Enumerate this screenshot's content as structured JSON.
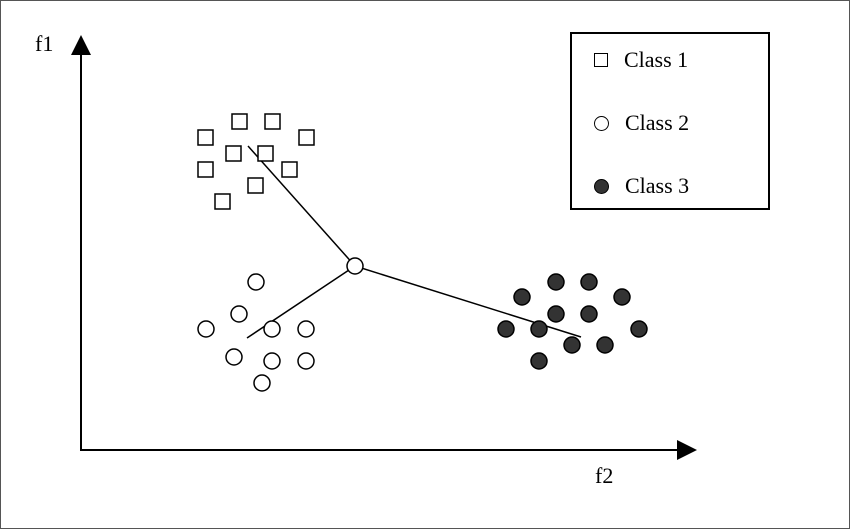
{
  "axes": {
    "y_label": "f1",
    "x_label": "f2"
  },
  "legend": {
    "items": [
      {
        "label": "Class 1",
        "marker": "square"
      },
      {
        "label": "Class 2",
        "marker": "open-circle"
      },
      {
        "label": "Class 3",
        "marker": "filled-circle"
      }
    ]
  },
  "colors": {
    "ink": "#000000",
    "filled_marker": "#333333",
    "background": "#ffffff"
  }
}
